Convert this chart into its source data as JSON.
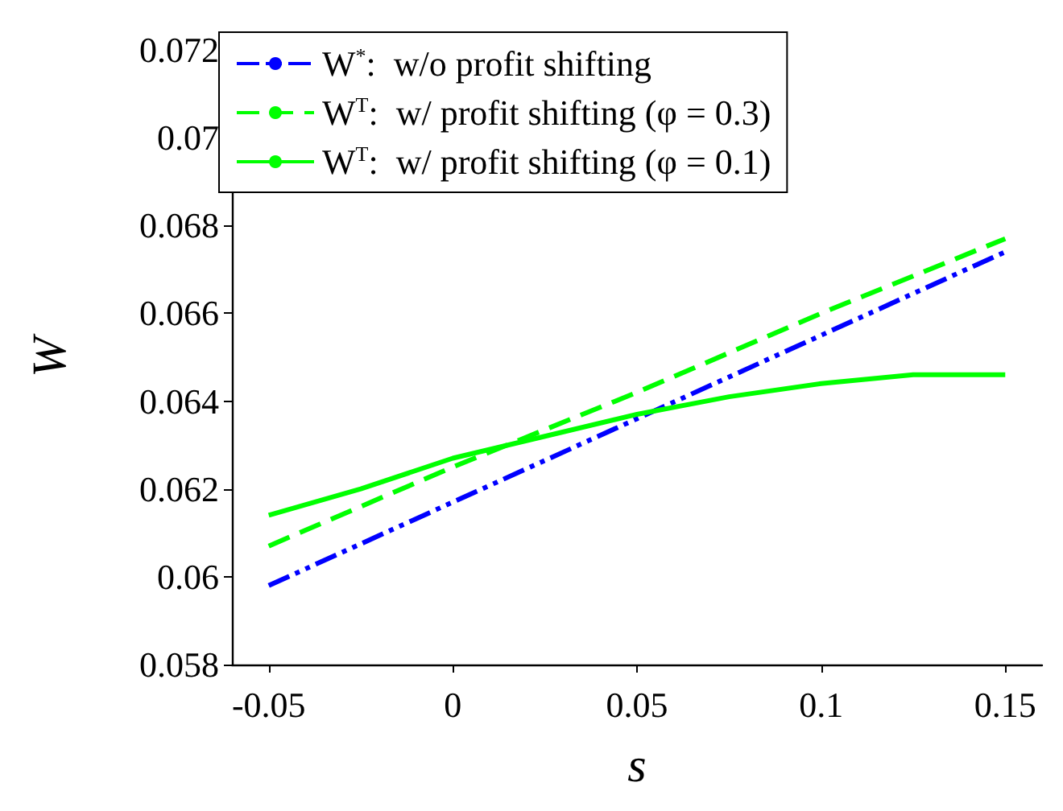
{
  "chart_data": {
    "type": "line",
    "xlabel": "s",
    "ylabel": "W",
    "xlim": [
      -0.06,
      0.16
    ],
    "xticks": [
      -0.05,
      0,
      0.05,
      0.1,
      0.15
    ],
    "ylim": [
      0.058,
      0.072
    ],
    "yticks": [
      0.058,
      0.06,
      0.062,
      0.064,
      0.066,
      0.068,
      0.07,
      0.072
    ],
    "grid": false,
    "legend": "top left",
    "marker": "none",
    "series": [
      {
        "name": "W$^{*}$:  w/o profit shifting",
        "color": "#0000ff",
        "line_style": "dashdotdot",
        "x": [
          -0.05,
          0,
          0.05,
          0.1,
          0.15
        ],
        "values": [
          0.0598,
          0.0617,
          0.0636,
          0.0655,
          0.0674
        ]
      },
      {
        "name": "W$^{T}$:  w/ profit shifting (φ = 0.3)",
        "color": "#00ff00",
        "line_style": "dashed",
        "x": [
          -0.05,
          0,
          0.05,
          0.1,
          0.15
        ],
        "values": [
          0.0607,
          0.0625,
          0.0642,
          0.066,
          0.0677
        ]
      },
      {
        "name": "W$^{T}$:  w/ profit shifting (φ = 0.1)",
        "color": "#00ff00",
        "line_style": "solid",
        "x": [
          -0.05,
          -0.025,
          0,
          0.025,
          0.05,
          0.075,
          0.1,
          0.125,
          0.15
        ],
        "values": [
          0.0614,
          0.062,
          0.0627,
          0.0632,
          0.0637,
          0.0641,
          0.0644,
          0.0646,
          0.0646
        ]
      }
    ]
  }
}
